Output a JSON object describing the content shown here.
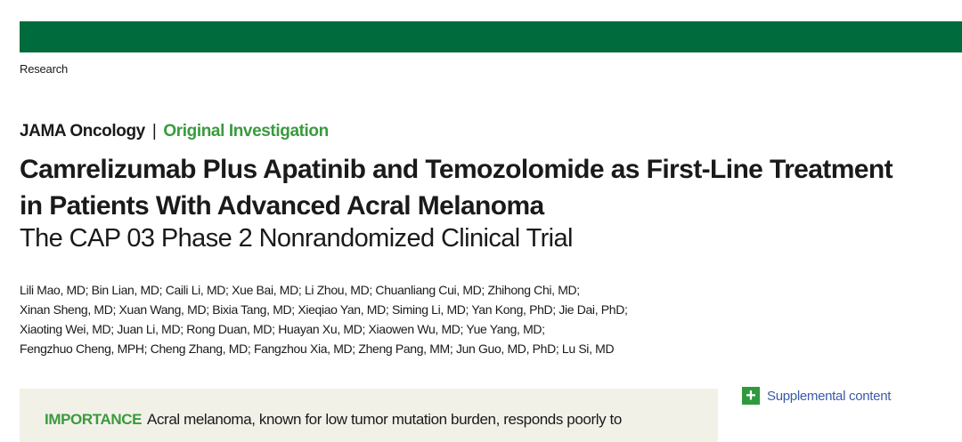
{
  "colors": {
    "header_bar": "#006b3c",
    "accent_green": "#3a9a3e",
    "link_blue": "#3b5ba8",
    "abstract_bg": "#f2f1e8"
  },
  "section": "Research",
  "journal": {
    "name": "JAMA Oncology",
    "separator": "|",
    "article_type": "Original Investigation"
  },
  "title": {
    "line1": "Camrelizumab Plus Apatinib and Temozolomide as First-Line Treatment",
    "line2": "in Patients With Advanced Acral Melanoma"
  },
  "subtitle": "The CAP 03 Phase 2 Nonrandomized Clinical Trial",
  "authors": [
    "Lili Mao, MD; Bin Lian, MD; Caili Li, MD; Xue Bai, MD; Li Zhou, MD; Chuanliang Cui, MD; Zhihong Chi, MD;",
    "Xinan Sheng, MD; Xuan Wang, MD; Bixia Tang, MD; Xieqiao Yan, MD; Siming Li, MD; Yan Kong, PhD; Jie Dai, PhD;",
    "Xiaoting Wei, MD; Juan Li, MD; Rong Duan, MD; Huayan Xu, MD; Xiaowen Wu, MD; Yue Yang, MD;",
    "Fengzhuo Cheng, MPH; Cheng Zhang, MD; Fangzhou Xia, MD; Zheng Pang, MM; Jun Guo, MD, PhD; Lu Si, MD"
  ],
  "supplemental": {
    "icon": "plus-icon",
    "symbol": "+",
    "label": "Supplemental content"
  },
  "abstract": {
    "importance_label": "IMPORTANCE",
    "importance_text": "Acral melanoma, known for low tumor mutation burden, responds poorly to"
  }
}
